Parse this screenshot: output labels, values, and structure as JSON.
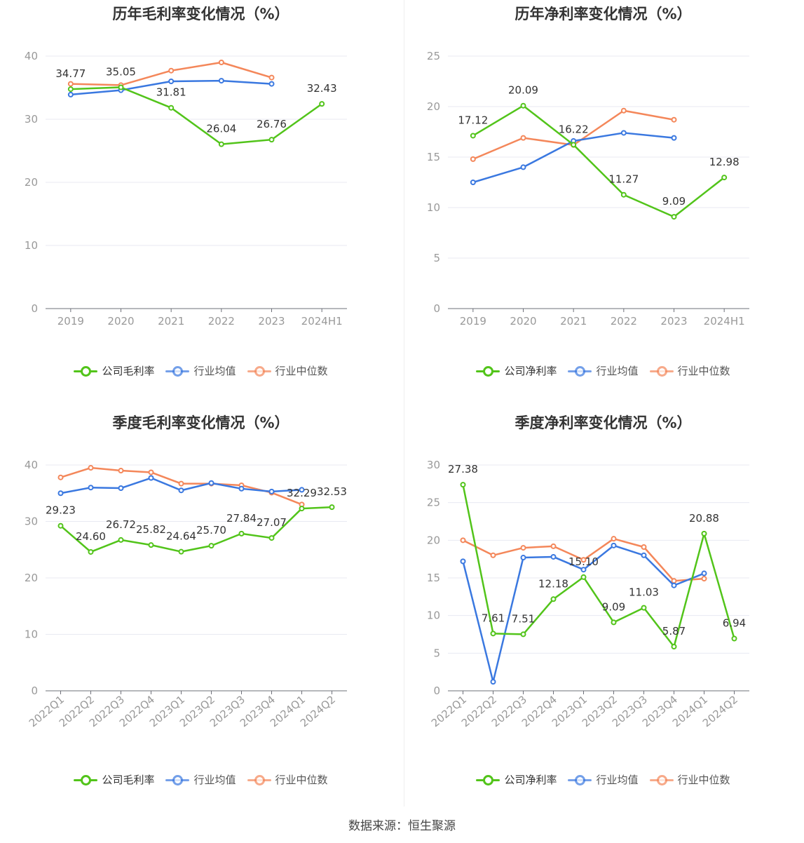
{
  "colors": {
    "company": "#52c41a",
    "avg": "#3a78e0",
    "median": "#f4875a",
    "grid": "#e8eaf2",
    "axis": "#999999"
  },
  "footer": {
    "label": "数据来源：",
    "value": "恒生聚源"
  },
  "chart_data": [
    {
      "type": "line",
      "title": "历年毛利率变化情况（%）",
      "categories": [
        "2019",
        "2020",
        "2021",
        "2022",
        "2023",
        "2024H1"
      ],
      "ylim": [
        0,
        40
      ],
      "yticks": [
        0,
        10,
        20,
        30,
        40
      ],
      "grid": true,
      "legend": "bottom",
      "series": [
        {
          "name": "公司毛利率",
          "color_key": "company",
          "values": [
            34.77,
            35.05,
            31.81,
            26.04,
            26.76,
            32.43
          ],
          "labels": [
            "34.77",
            "35.05",
            "31.81",
            "26.04",
            "26.76",
            "32.43"
          ]
        },
        {
          "name": "行业均值",
          "color_key": "avg",
          "values": [
            33.9,
            34.6,
            36.0,
            36.1,
            35.6,
            null
          ]
        },
        {
          "name": "行业中位数",
          "color_key": "median",
          "values": [
            35.6,
            35.4,
            37.7,
            39.0,
            36.6,
            null
          ]
        }
      ]
    },
    {
      "type": "line",
      "title": "历年净利率变化情况（%）",
      "categories": [
        "2019",
        "2020",
        "2021",
        "2022",
        "2023",
        "2024H1"
      ],
      "ylim": [
        0,
        25
      ],
      "yticks": [
        0,
        5,
        10,
        15,
        20,
        25
      ],
      "grid": true,
      "legend": "bottom",
      "series": [
        {
          "name": "公司净利率",
          "color_key": "company",
          "values": [
            17.12,
            20.09,
            16.22,
            11.27,
            9.09,
            12.98
          ],
          "labels": [
            "17.12",
            "20.09",
            "16.22",
            "11.27",
            "9.09",
            "12.98"
          ]
        },
        {
          "name": "行业均值",
          "color_key": "avg",
          "values": [
            12.5,
            14.0,
            16.6,
            17.4,
            16.9,
            null
          ]
        },
        {
          "name": "行业中位数",
          "color_key": "median",
          "values": [
            14.8,
            16.9,
            16.2,
            19.6,
            18.7,
            null
          ]
        }
      ]
    },
    {
      "type": "line",
      "title": "季度毛利率变化情况（%）",
      "categories": [
        "2022Q1",
        "2022Q2",
        "2022Q3",
        "2022Q4",
        "2023Q1",
        "2023Q2",
        "2023Q3",
        "2023Q4",
        "2024Q1",
        "2024Q2"
      ],
      "ylim": [
        0,
        40
      ],
      "yticks": [
        0,
        10,
        20,
        30,
        40
      ],
      "grid": true,
      "legend": "bottom",
      "series": [
        {
          "name": "公司毛利率",
          "color_key": "company",
          "values": [
            29.23,
            24.6,
            26.72,
            25.82,
            24.64,
            25.7,
            27.84,
            27.07,
            32.29,
            32.53
          ],
          "labels": [
            "29.23",
            "24.60",
            "26.72",
            "25.82",
            "24.64",
            "25.70",
            "27.84",
            "27.07",
            "32.29",
            "32.53"
          ]
        },
        {
          "name": "行业均值",
          "color_key": "avg",
          "values": [
            35.0,
            36.0,
            35.9,
            37.7,
            35.5,
            36.8,
            35.8,
            35.3,
            35.6,
            null
          ]
        },
        {
          "name": "行业中位数",
          "color_key": "median",
          "values": [
            37.8,
            39.5,
            39.0,
            38.7,
            36.7,
            36.7,
            36.4,
            35.1,
            33.0,
            null
          ]
        }
      ]
    },
    {
      "type": "line",
      "title": "季度净利率变化情况（%）",
      "categories": [
        "2022Q1",
        "2022Q2",
        "2022Q3",
        "2022Q4",
        "2023Q1",
        "2023Q2",
        "2023Q3",
        "2023Q4",
        "2024Q1",
        "2024Q2"
      ],
      "ylim": [
        0,
        30
      ],
      "yticks": [
        0,
        5,
        10,
        15,
        20,
        25,
        30
      ],
      "grid": true,
      "legend": "bottom",
      "series": [
        {
          "name": "公司净利率",
          "color_key": "company",
          "values": [
            27.38,
            7.61,
            7.51,
            12.18,
            15.1,
            9.09,
            11.03,
            5.87,
            20.88,
            6.94
          ],
          "labels": [
            "27.38",
            "7.61",
            "7.51",
            "12.18",
            "15.10",
            "9.09",
            "11.03",
            "5.87",
            "20.88",
            "6.94"
          ]
        },
        {
          "name": "行业均值",
          "color_key": "avg",
          "values": [
            17.2,
            1.2,
            17.7,
            17.8,
            16.1,
            19.3,
            18.0,
            14.0,
            15.6,
            null
          ]
        },
        {
          "name": "行业中位数",
          "color_key": "median",
          "values": [
            20.0,
            18.0,
            19.0,
            19.2,
            17.4,
            20.2,
            19.1,
            14.6,
            14.9,
            null
          ]
        }
      ]
    }
  ]
}
